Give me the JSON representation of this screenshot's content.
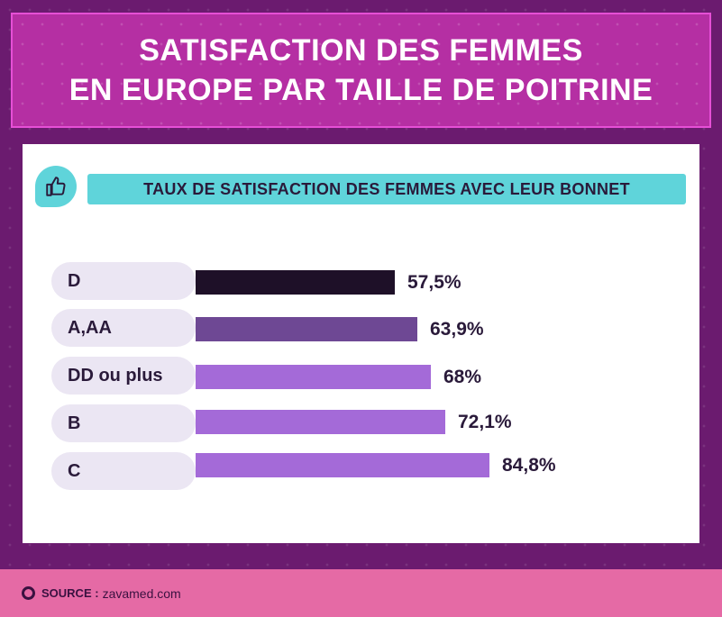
{
  "title_line1": "SATISFACTION DES FEMMES",
  "title_line2": "EN EUROPE PAR TAILLE DE POITRINE",
  "subtitle": "TAUX DE SATISFACTION DES FEMMES AVEC LEUR BONNET",
  "icon": "thumbs-up-icon",
  "source": {
    "label": "SOURCE :",
    "value": "zavamed.com"
  },
  "colors": {
    "dark": "#1e1028",
    "medium": "#6e4894",
    "light": "#a46ad8",
    "accent": "#5fd4da"
  },
  "chart_data": {
    "type": "bar",
    "orientation": "horizontal",
    "categories": [
      "D",
      "A,AA",
      "DD ou plus",
      "B",
      "C"
    ],
    "values": [
      57.5,
      63.9,
      68,
      72.1,
      84.8
    ],
    "value_labels": [
      "57,5%",
      "63,9%",
      "68%",
      "72,1%",
      "84,8%"
    ],
    "xlim": [
      0,
      100
    ],
    "title": "TAUX DE SATISFACTION DES FEMMES AVEC LEUR BONNET"
  }
}
